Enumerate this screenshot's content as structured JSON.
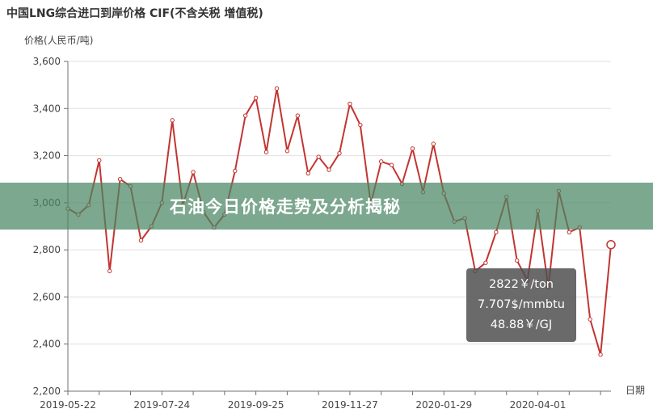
{
  "chart_data": {
    "type": "line",
    "title": "中国LNG综合进口到岸价格  CIF(不含关税  增值税)",
    "ylabel": "价格(人民币/吨)",
    "xlabel": "日期",
    "ylim": [
      2200,
      3600
    ],
    "yticks": [
      "2,200",
      "2,400",
      "2,600",
      "2,800",
      "3,000",
      "3,200",
      "3,400",
      "3,600"
    ],
    "xtick_labels": [
      {
        "index": 0,
        "label": "2019-05-22"
      },
      {
        "index": 9,
        "label": "2019-07-24"
      },
      {
        "index": 18,
        "label": "2019-09-25"
      },
      {
        "index": 27,
        "label": "2019-11-27"
      },
      {
        "index": 36,
        "label": "2020-01-29"
      },
      {
        "index": 45,
        "label": "2020-04-01"
      }
    ],
    "grid": true,
    "colors": {
      "line": "#c23531",
      "grid": "#e0e0e0",
      "axis": "#6e7079"
    },
    "series": [
      {
        "values": [
          2975,
          2950,
          2990,
          3180,
          2710,
          3100,
          3070,
          2840,
          2900,
          3000,
          3350,
          2990,
          3130,
          2960,
          2895,
          2950,
          3135,
          3370,
          3445,
          3215,
          3485,
          3220,
          3370,
          3125,
          3195,
          3140,
          3210,
          3420,
          3330,
          2995,
          3175,
          3160,
          3080,
          3230,
          3045,
          3250,
          3040,
          2920,
          2935,
          2710,
          2745,
          2875,
          3025,
          2755,
          2670,
          2965,
          2640,
          3050,
          2875,
          2895,
          2505,
          2355,
          2822
        ]
      }
    ],
    "highlight_index": 52
  },
  "tooltip": {
    "lines": [
      "2822￥/ton",
      "7.707$/mmbtu",
      "48.88￥/GJ"
    ]
  },
  "banner": {
    "text": "石油今日价格走势及分析揭秘"
  }
}
